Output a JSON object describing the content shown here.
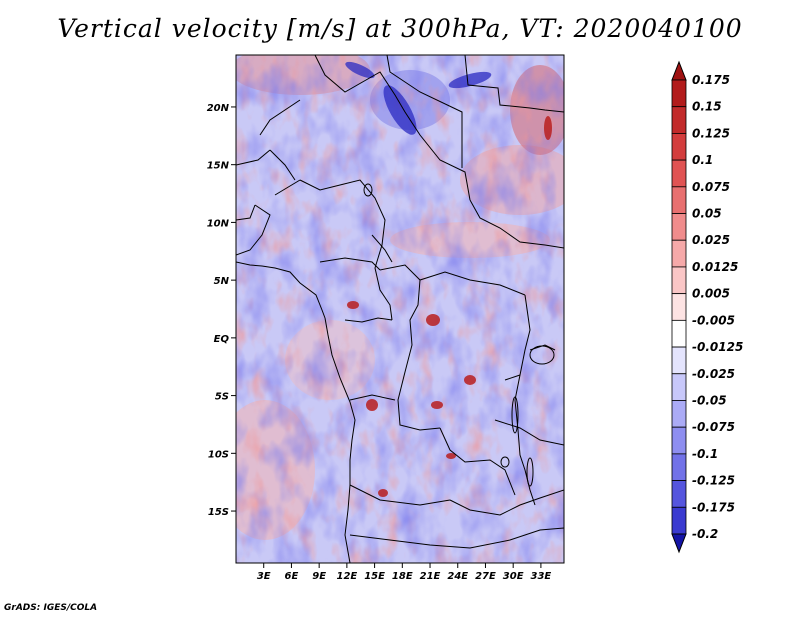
{
  "title": "Vertical velocity [m/s] at 300hPa, VT: 2020040100",
  "footer": "GrADS: IGES/COLA",
  "map": {
    "lon_range": [
      0,
      35.5
    ],
    "lat_range": [
      -19.5,
      24.5
    ],
    "lat_ticks": [
      {
        "value": 20,
        "label": "20N"
      },
      {
        "value": 15,
        "label": "15N"
      },
      {
        "value": 10,
        "label": "10N"
      },
      {
        "value": 5,
        "label": "5N"
      },
      {
        "value": 0,
        "label": "EQ"
      },
      {
        "value": -5,
        "label": "5S"
      },
      {
        "value": -10,
        "label": "10S"
      },
      {
        "value": -15,
        "label": "15S"
      }
    ],
    "lon_ticks": [
      {
        "value": 3,
        "label": "3E"
      },
      {
        "value": 6,
        "label": "6E"
      },
      {
        "value": 9,
        "label": "9E"
      },
      {
        "value": 12,
        "label": "12E"
      },
      {
        "value": 15,
        "label": "15E"
      },
      {
        "value": 18,
        "label": "18E"
      },
      {
        "value": 21,
        "label": "21E"
      },
      {
        "value": 24,
        "label": "24E"
      },
      {
        "value": 27,
        "label": "27E"
      },
      {
        "value": 30,
        "label": "30E"
      },
      {
        "value": 33,
        "label": "33E"
      }
    ]
  },
  "colorbar": {
    "levels": [
      {
        "label": "0.175",
        "color": "#b21b1b"
      },
      {
        "label": "0.15",
        "color": "#c22b2b"
      },
      {
        "label": "0.125",
        "color": "#d33d3d"
      },
      {
        "label": "0.1",
        "color": "#e05353"
      },
      {
        "label": "0.075",
        "color": "#e87070"
      },
      {
        "label": "0.05",
        "color": "#f08c8c"
      },
      {
        "label": "0.025",
        "color": "#f6a9a9"
      },
      {
        "label": "0.0125",
        "color": "#fac6c6"
      },
      {
        "label": "0.005",
        "color": "#fde3e3"
      },
      {
        "label": "-0.005",
        "color": "#ffffff"
      },
      {
        "label": "-0.0125",
        "color": "#e4e4fd"
      },
      {
        "label": "-0.025",
        "color": "#c8c8fa"
      },
      {
        "label": "-0.05",
        "color": "#ababf6"
      },
      {
        "label": "-0.075",
        "color": "#8e8ef0"
      },
      {
        "label": "-0.1",
        "color": "#7272e8"
      },
      {
        "label": "-0.125",
        "color": "#5555de"
      },
      {
        "label": "-0.175",
        "color": "#3a3ad0"
      },
      {
        "label": "-0.2",
        "color": "#2424bd"
      }
    ],
    "top_arrow_color": "#9f1212",
    "bottom_arrow_color": "#1414a6"
  }
}
